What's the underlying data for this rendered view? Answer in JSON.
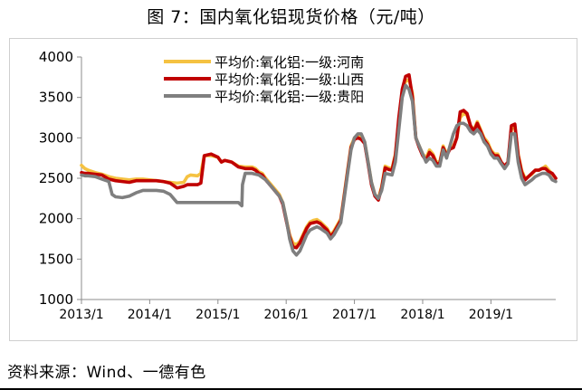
{
  "header": {
    "title": "图 7：国内氧化铝现货价格（元/吨）"
  },
  "footer": {
    "source": "资料来源：Wind、一德有色"
  },
  "chart_data": {
    "type": "line",
    "title": "图 7：国内氧化铝现货价格（元/吨）",
    "ylabel": "",
    "xlabel": "",
    "ylim": [
      1000,
      4000
    ],
    "yticks": [
      1000,
      1500,
      2000,
      2500,
      3000,
      3500,
      4000
    ],
    "xlim": [
      2013.0,
      2019.95
    ],
    "xticks": [
      2013.0,
      2014.0,
      2015.0,
      2016.0,
      2017.0,
      2018.0,
      2019.0
    ],
    "xtick_labels": [
      "2013/1",
      "2014/1",
      "2015/1",
      "2016/1",
      "2017/1",
      "2018/1",
      "2019/1"
    ],
    "grid": false,
    "legend_position": "top-left",
    "series": [
      {
        "name": "平均价:氧化铝:一级:河南",
        "color": "#F5C242",
        "x": [
          2013.0,
          2013.05,
          2013.1,
          2013.2,
          2013.3,
          2013.4,
          2013.5,
          2013.6,
          2013.7,
          2013.8,
          2013.9,
          2014.0,
          2014.1,
          2014.2,
          2014.3,
          2014.4,
          2014.5,
          2014.55,
          2014.6,
          2014.7,
          2014.75,
          2014.8,
          2014.9,
          2015.0,
          2015.05,
          2015.1,
          2015.2,
          2015.3,
          2015.4,
          2015.5,
          2015.55,
          2015.6,
          2015.65,
          2015.7,
          2015.8,
          2015.9,
          2015.95,
          2016.0,
          2016.05,
          2016.1,
          2016.15,
          2016.2,
          2016.3,
          2016.35,
          2016.4,
          2016.45,
          2016.5,
          2016.6,
          2016.65,
          2016.7,
          2016.8,
          2016.85,
          2016.9,
          2016.95,
          2017.0,
          2017.05,
          2017.1,
          2017.15,
          2017.2,
          2017.25,
          2017.3,
          2017.35,
          2017.4,
          2017.45,
          2017.5,
          2017.55,
          2017.6,
          2017.65,
          2017.7,
          2017.75,
          2017.8,
          2017.85,
          2017.9,
          2017.95,
          2018.0,
          2018.05,
          2018.1,
          2018.15,
          2018.2,
          2018.25,
          2018.3,
          2018.35,
          2018.4,
          2018.45,
          2018.5,
          2018.55,
          2018.6,
          2018.65,
          2018.7,
          2018.75,
          2018.8,
          2018.85,
          2018.9,
          2018.95,
          2019.0,
          2019.05,
          2019.1,
          2019.15,
          2019.2,
          2019.25,
          2019.3,
          2019.35,
          2019.4,
          2019.45,
          2019.5,
          2019.55,
          2019.6,
          2019.65,
          2019.7,
          2019.75,
          2019.8,
          2019.85,
          2019.9,
          2019.95
        ],
        "values": [
          2660,
          2620,
          2600,
          2570,
          2550,
          2520,
          2500,
          2490,
          2480,
          2490,
          2490,
          2480,
          2470,
          2460,
          2450,
          2440,
          2450,
          2520,
          2540,
          2530,
          2560,
          2780,
          2780,
          2760,
          2700,
          2720,
          2700,
          2650,
          2640,
          2640,
          2620,
          2580,
          2560,
          2500,
          2400,
          2300,
          2200,
          2000,
          1800,
          1700,
          1680,
          1720,
          1900,
          1960,
          1980,
          1990,
          1960,
          1880,
          1800,
          1850,
          2000,
          2300,
          2600,
          2900,
          3000,
          3020,
          3000,
          2950,
          2700,
          2450,
          2300,
          2250,
          2400,
          2650,
          2630,
          2620,
          2800,
          3200,
          3550,
          3700,
          3720,
          3550,
          3000,
          2900,
          2800,
          2750,
          2850,
          2800,
          2700,
          2700,
          2900,
          2800,
          2880,
          2900,
          3000,
          3250,
          3300,
          3280,
          3150,
          3100,
          3200,
          3100,
          3000,
          2950,
          2850,
          2800,
          2800,
          2700,
          2650,
          2700,
          3100,
          3150,
          2800,
          2600,
          2500,
          2520,
          2550,
          2600,
          2600,
          2620,
          2650,
          2600,
          2550,
          2500
        ]
      },
      {
        "name": "平均价:氧化铝:一级:山西",
        "color": "#C00000",
        "x": [
          2013.0,
          2013.05,
          2013.1,
          2013.2,
          2013.3,
          2013.4,
          2013.5,
          2013.6,
          2013.7,
          2013.8,
          2013.9,
          2014.0,
          2014.1,
          2014.2,
          2014.3,
          2014.4,
          2014.5,
          2014.55,
          2014.6,
          2014.7,
          2014.75,
          2014.8,
          2014.9,
          2015.0,
          2015.05,
          2015.1,
          2015.2,
          2015.3,
          2015.4,
          2015.5,
          2015.55,
          2015.6,
          2015.65,
          2015.7,
          2015.8,
          2015.9,
          2015.95,
          2016.0,
          2016.05,
          2016.1,
          2016.15,
          2016.2,
          2016.3,
          2016.35,
          2016.4,
          2016.45,
          2016.5,
          2016.6,
          2016.65,
          2016.7,
          2016.8,
          2016.85,
          2016.9,
          2016.95,
          2017.0,
          2017.05,
          2017.1,
          2017.15,
          2017.2,
          2017.25,
          2017.3,
          2017.35,
          2017.4,
          2017.45,
          2017.5,
          2017.55,
          2017.6,
          2017.65,
          2017.7,
          2017.75,
          2017.8,
          2017.85,
          2017.9,
          2017.95,
          2018.0,
          2018.05,
          2018.1,
          2018.15,
          2018.2,
          2018.25,
          2018.3,
          2018.35,
          2018.4,
          2018.45,
          2018.5,
          2018.55,
          2018.6,
          2018.65,
          2018.7,
          2018.75,
          2018.8,
          2018.85,
          2018.9,
          2018.95,
          2019.0,
          2019.05,
          2019.1,
          2019.15,
          2019.2,
          2019.25,
          2019.3,
          2019.35,
          2019.4,
          2019.45,
          2019.5,
          2019.55,
          2019.6,
          2019.65,
          2019.7,
          2019.75,
          2019.8,
          2019.85,
          2019.9,
          2019.95
        ],
        "values": [
          2570,
          2560,
          2560,
          2550,
          2540,
          2490,
          2470,
          2460,
          2450,
          2470,
          2470,
          2470,
          2470,
          2460,
          2440,
          2380,
          2400,
          2420,
          2420,
          2420,
          2440,
          2780,
          2800,
          2760,
          2700,
          2720,
          2700,
          2640,
          2620,
          2620,
          2600,
          2560,
          2540,
          2480,
          2380,
          2280,
          2180,
          1980,
          1780,
          1650,
          1640,
          1700,
          1880,
          1940,
          1950,
          1960,
          1940,
          1860,
          1780,
          1830,
          1980,
          2280,
          2580,
          2880,
          2980,
          3000,
          2980,
          2930,
          2680,
          2420,
          2280,
          2230,
          2380,
          2630,
          2610,
          2600,
          2780,
          3250,
          3600,
          3760,
          3780,
          3500,
          3000,
          2880,
          2780,
          2720,
          2820,
          2780,
          2680,
          2680,
          2880,
          2780,
          2860,
          2880,
          3000,
          3320,
          3340,
          3300,
          3150,
          3080,
          3180,
          3080,
          2980,
          2920,
          2830,
          2780,
          2780,
          2700,
          2650,
          2700,
          3150,
          3170,
          2780,
          2580,
          2480,
          2520,
          2560,
          2600,
          2600,
          2620,
          2620,
          2580,
          2560,
          2500
        ]
      },
      {
        "name": "平均价:氧化铝:一级:贵阳",
        "color": "#7F7F7F",
        "x": [
          2013.0,
          2013.05,
          2013.1,
          2013.2,
          2013.3,
          2013.4,
          2013.45,
          2013.5,
          2013.6,
          2013.7,
          2013.8,
          2013.9,
          2014.0,
          2014.1,
          2014.2,
          2014.3,
          2014.4,
          2014.5,
          2014.6,
          2014.7,
          2014.8,
          2014.9,
          2015.0,
          2015.1,
          2015.2,
          2015.3,
          2015.35,
          2015.36,
          2015.4,
          2015.5,
          2015.6,
          2015.7,
          2015.8,
          2015.9,
          2015.95,
          2016.0,
          2016.05,
          2016.1,
          2016.15,
          2016.2,
          2016.3,
          2016.35,
          2016.4,
          2016.45,
          2016.5,
          2016.6,
          2016.65,
          2016.7,
          2016.8,
          2016.85,
          2016.9,
          2016.95,
          2017.0,
          2017.05,
          2017.1,
          2017.15,
          2017.2,
          2017.25,
          2017.3,
          2017.35,
          2017.4,
          2017.45,
          2017.5,
          2017.55,
          2017.6,
          2017.65,
          2017.7,
          2017.75,
          2017.8,
          2017.85,
          2017.9,
          2017.95,
          2018.0,
          2018.05,
          2018.1,
          2018.15,
          2018.2,
          2018.25,
          2018.3,
          2018.35,
          2018.4,
          2018.45,
          2018.5,
          2018.55,
          2018.6,
          2018.65,
          2018.7,
          2018.75,
          2018.8,
          2018.85,
          2018.9,
          2018.95,
          2019.0,
          2019.05,
          2019.1,
          2019.15,
          2019.2,
          2019.25,
          2019.3,
          2019.35,
          2019.4,
          2019.45,
          2019.5,
          2019.55,
          2019.6,
          2019.65,
          2019.7,
          2019.75,
          2019.8,
          2019.85,
          2019.9,
          2019.95
        ],
        "values": [
          2540,
          2530,
          2530,
          2520,
          2490,
          2460,
          2300,
          2270,
          2260,
          2280,
          2320,
          2350,
          2350,
          2350,
          2340,
          2300,
          2200,
          2200,
          2200,
          2200,
          2200,
          2200,
          2200,
          2200,
          2200,
          2200,
          2160,
          2420,
          2560,
          2560,
          2540,
          2480,
          2380,
          2280,
          2200,
          2000,
          1750,
          1600,
          1550,
          1600,
          1800,
          1860,
          1880,
          1900,
          1880,
          1820,
          1750,
          1800,
          1950,
          2250,
          2550,
          2850,
          3000,
          3050,
          3050,
          2950,
          2700,
          2450,
          2300,
          2250,
          2350,
          2560,
          2550,
          2540,
          2700,
          3100,
          3500,
          3650,
          3600,
          3450,
          3000,
          2900,
          2800,
          2700,
          2750,
          2720,
          2650,
          2650,
          2850,
          2750,
          2900,
          3050,
          3150,
          3180,
          3180,
          3150,
          3080,
          3050,
          3100,
          3050,
          2950,
          2900,
          2800,
          2750,
          2750,
          2680,
          2620,
          2680,
          3050,
          3050,
          2700,
          2500,
          2420,
          2450,
          2480,
          2520,
          2540,
          2560,
          2560,
          2540,
          2480,
          2460
        ]
      }
    ]
  }
}
